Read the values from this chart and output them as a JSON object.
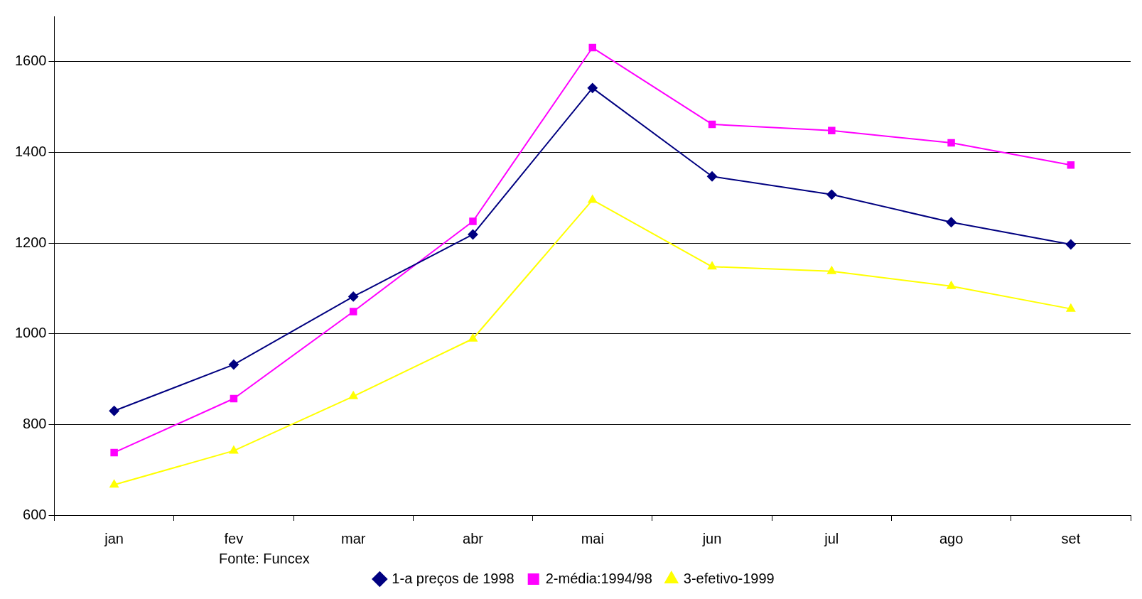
{
  "chart_data": {
    "type": "line",
    "categories": [
      "jan",
      "fev",
      "mar",
      "abr",
      "mai",
      "jun",
      "jul",
      "ago",
      "set"
    ],
    "series": [
      {
        "name": "1-a preços de 1998",
        "color": "#000080",
        "marker": "diamond",
        "values": [
          830,
          932,
          1082,
          1219,
          1542,
          1347,
          1307,
          1246,
          1197
        ]
      },
      {
        "name": "2-média:1994/98",
        "color": "#ff00ff",
        "marker": "square",
        "values": [
          738,
          857,
          1049,
          1248,
          1631,
          1462,
          1448,
          1421,
          1372
        ]
      },
      {
        "name": "3-efetivo-1999",
        "color": "#ffff00",
        "marker": "triangle",
        "values": [
          667,
          742,
          862,
          989,
          1295,
          1148,
          1138,
          1105,
          1055
        ]
      }
    ],
    "ylim": [
      600,
      1700
    ],
    "yticks": [
      600,
      800,
      1000,
      1200,
      1400,
      1600
    ],
    "grid": "y",
    "legend": "bottom",
    "line_style": "solid",
    "annotations": [
      "Fonte: Funcex"
    ]
  }
}
